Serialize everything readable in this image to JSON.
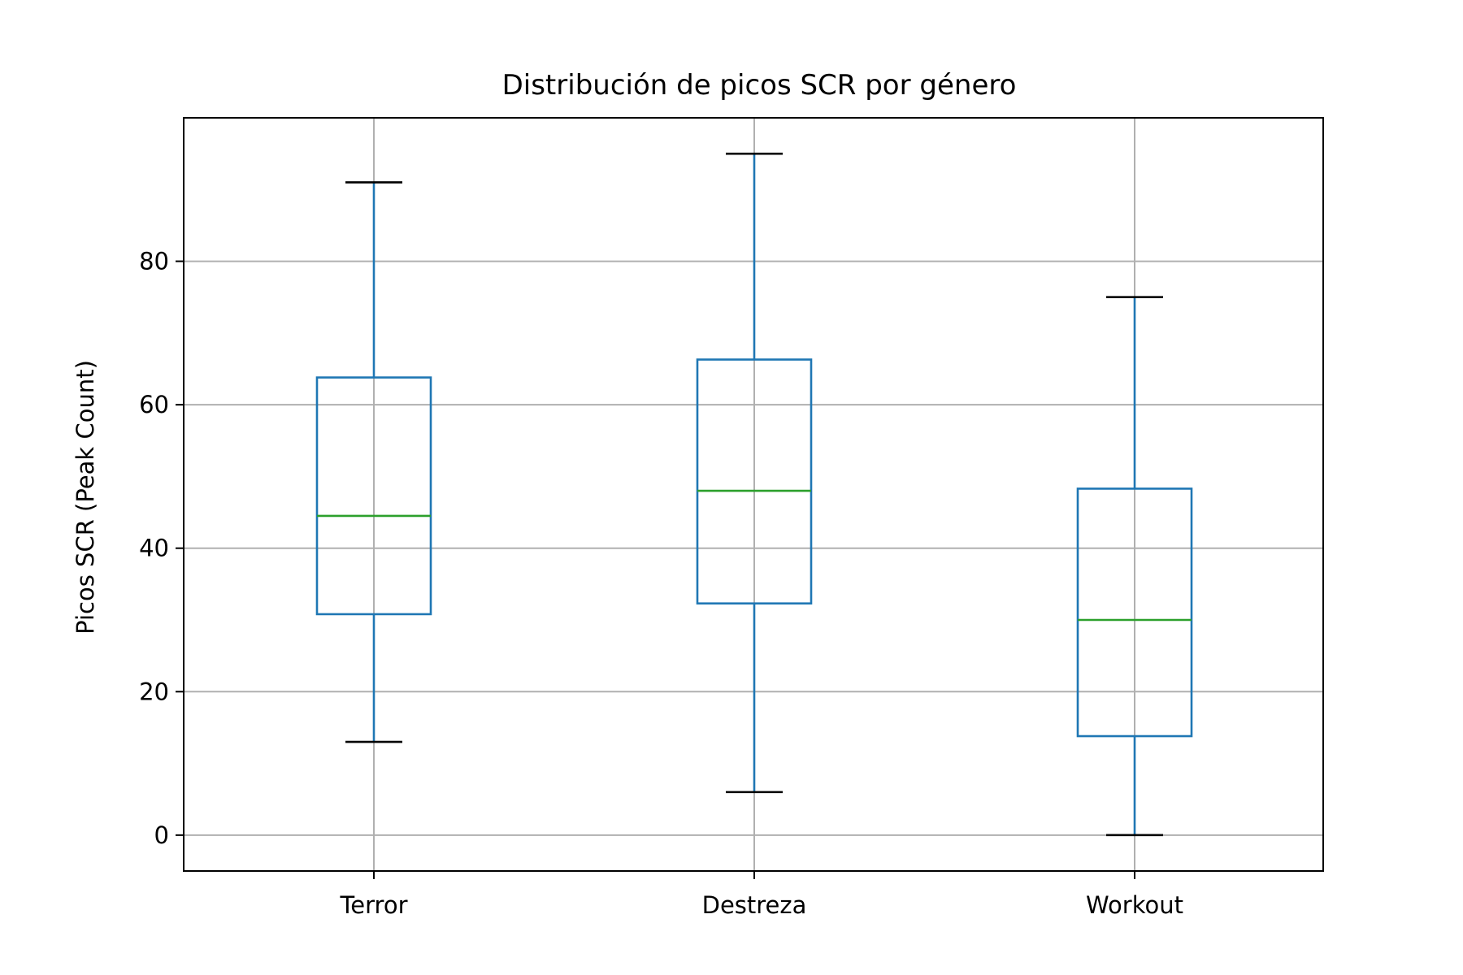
{
  "chart_data": {
    "type": "box",
    "title": "Distribución de picos SCR por género",
    "xlabel": "",
    "ylabel": "Picos SCR (Peak Count)",
    "ylim": [
      -5,
      100
    ],
    "yticks": [
      0,
      20,
      40,
      60,
      80
    ],
    "grid": true,
    "categories": [
      "Terror",
      "Destreza",
      "Workout"
    ],
    "boxes": [
      {
        "name": "Terror",
        "whisker_low": 13,
        "q1": 30.8,
        "median": 44.5,
        "q3": 63.8,
        "whisker_high": 91
      },
      {
        "name": "Destreza",
        "whisker_low": 6,
        "q1": 32.3,
        "median": 48,
        "q3": 66.3,
        "whisker_high": 95
      },
      {
        "name": "Workout",
        "whisker_low": 0,
        "q1": 13.8,
        "median": 30,
        "q3": 48.3,
        "whisker_high": 75
      }
    ],
    "colors": {
      "box": "#1f77b4",
      "median": "#2ca02c",
      "cap": "#000000",
      "grid": "#b0b0b0"
    }
  }
}
